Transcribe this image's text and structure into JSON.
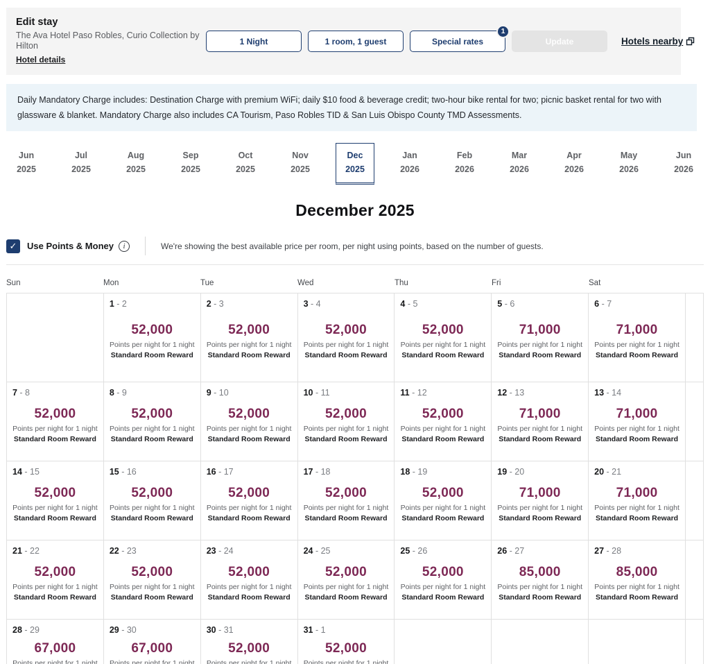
{
  "colors": {
    "navy": "#1e3d6f",
    "points_purple": "#7d2855",
    "banner_bg": "#ecf4f9",
    "panel_bg": "#f4f4f4"
  },
  "header": {
    "title": "Edit stay",
    "hotel_name": "The Ava Hotel Paso Robles, Curio Collection by Hilton",
    "hotel_details_label": "Hotel details",
    "nights_button": "1 Night",
    "occupancy_button": "1 room, 1 guest",
    "special_rates_button": "Special rates",
    "special_rates_badge": "1",
    "update_button": "Update",
    "hotels_nearby_link": "Hotels nearby"
  },
  "banner": {
    "text": "Daily Mandatory Charge includes: Destination Charge with premium WiFi; daily $10 food & beverage credit; two-hour bike rental for two; picnic basket rental for two with glassware & blanket. Mandatory Charge also includes CA Tourism, Paso Robles TID & San Luis Obispo County TMD Assessments."
  },
  "month_tabs": [
    {
      "month": "Jun",
      "year": "2025",
      "selected": false
    },
    {
      "month": "Jul",
      "year": "2025",
      "selected": false
    },
    {
      "month": "Aug",
      "year": "2025",
      "selected": false
    },
    {
      "month": "Sep",
      "year": "2025",
      "selected": false
    },
    {
      "month": "Oct",
      "year": "2025",
      "selected": false
    },
    {
      "month": "Nov",
      "year": "2025",
      "selected": false
    },
    {
      "month": "Dec",
      "year": "2025",
      "selected": true
    },
    {
      "month": "Jan",
      "year": "2026",
      "selected": false
    },
    {
      "month": "Feb",
      "year": "2026",
      "selected": false
    },
    {
      "month": "Mar",
      "year": "2026",
      "selected": false
    },
    {
      "month": "Apr",
      "year": "2026",
      "selected": false
    },
    {
      "month": "May",
      "year": "2026",
      "selected": false
    },
    {
      "month": "Jun",
      "year": "2026",
      "selected": false
    }
  ],
  "calendar": {
    "heading": "December 2025",
    "points_toggle_label": "Use Points & Money",
    "points_toggle_checked": true,
    "points_description": "We're showing the best available price per room, per night using points, based on the number of guests.",
    "day_headers": [
      "Sun",
      "Mon",
      "Tue",
      "Wed",
      "Thu",
      "Fri",
      "Sat"
    ],
    "points_suffix": "Points per night for 1 night",
    "rate_name": "Standard Room Reward",
    "weeks": [
      [
        null,
        {
          "start": "1",
          "end": "2",
          "points": "52,000"
        },
        {
          "start": "2",
          "end": "3",
          "points": "52,000"
        },
        {
          "start": "3",
          "end": "4",
          "points": "52,000"
        },
        {
          "start": "4",
          "end": "5",
          "points": "52,000"
        },
        {
          "start": "5",
          "end": "6",
          "points": "71,000"
        },
        {
          "start": "6",
          "end": "7",
          "points": "71,000"
        }
      ],
      [
        {
          "start": "7",
          "end": "8",
          "points": "52,000"
        },
        {
          "start": "8",
          "end": "9",
          "points": "52,000"
        },
        {
          "start": "9",
          "end": "10",
          "points": "52,000"
        },
        {
          "start": "10",
          "end": "11",
          "points": "52,000"
        },
        {
          "start": "11",
          "end": "12",
          "points": "52,000"
        },
        {
          "start": "12",
          "end": "13",
          "points": "71,000"
        },
        {
          "start": "13",
          "end": "14",
          "points": "71,000"
        }
      ],
      [
        {
          "start": "14",
          "end": "15",
          "points": "52,000"
        },
        {
          "start": "15",
          "end": "16",
          "points": "52,000"
        },
        {
          "start": "16",
          "end": "17",
          "points": "52,000"
        },
        {
          "start": "17",
          "end": "18",
          "points": "52,000"
        },
        {
          "start": "18",
          "end": "19",
          "points": "52,000"
        },
        {
          "start": "19",
          "end": "20",
          "points": "71,000"
        },
        {
          "start": "20",
          "end": "21",
          "points": "71,000"
        }
      ],
      [
        {
          "start": "21",
          "end": "22",
          "points": "52,000"
        },
        {
          "start": "22",
          "end": "23",
          "points": "52,000"
        },
        {
          "start": "23",
          "end": "24",
          "points": "52,000"
        },
        {
          "start": "24",
          "end": "25",
          "points": "52,000"
        },
        {
          "start": "25",
          "end": "26",
          "points": "52,000"
        },
        {
          "start": "26",
          "end": "27",
          "points": "85,000"
        },
        {
          "start": "27",
          "end": "28",
          "points": "85,000"
        }
      ],
      [
        {
          "start": "28",
          "end": "29",
          "points": "67,000"
        },
        {
          "start": "29",
          "end": "30",
          "points": "67,000"
        },
        {
          "start": "30",
          "end": "31",
          "points": "52,000"
        },
        {
          "start": "31",
          "end": "1",
          "points": "52,000"
        },
        null,
        null,
        null
      ]
    ]
  }
}
